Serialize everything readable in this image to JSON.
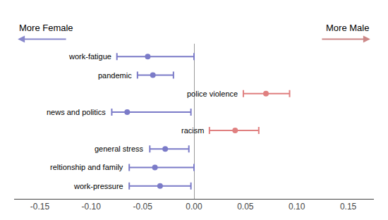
{
  "chart_data": {
    "type": "forest",
    "categories": [
      "work-fatigue",
      "pandemic",
      "police violence",
      "news and politics",
      "racism",
      "general stress",
      "reltionship and family",
      "work-pressure"
    ],
    "values": [
      -0.045,
      -0.04,
      0.07,
      -0.065,
      0.04,
      -0.028,
      -0.038,
      -0.033
    ],
    "ci_low": [
      -0.075,
      -0.055,
      0.048,
      -0.08,
      0.015,
      -0.043,
      -0.063,
      -0.063
    ],
    "ci_high": [
      0.0,
      -0.02,
      0.093,
      -0.003,
      0.063,
      -0.005,
      0.0,
      -0.003
    ],
    "colors": [
      "#7b7bc8",
      "#7b7bc8",
      "#e08080",
      "#7b7bc8",
      "#e08080",
      "#7b7bc8",
      "#7b7bc8",
      "#7b7bc8"
    ],
    "xlim": [
      -0.175,
      0.175
    ],
    "xticks": [
      -0.15,
      {
        "value": -0.1,
        "label": "-0.10"
      },
      -0.05,
      {
        "value": 0,
        "label": "0.00"
      },
      0.05,
      {
        "value": 0.1,
        "label": "0.10"
      },
      0.15
    ],
    "grid": false,
    "tick_labels": "x",
    "annotations": [
      {
        "text": "More Female",
        "color": "#8888cc"
      },
      {
        "text": "More Male",
        "color": "#cc8888"
      }
    ]
  }
}
